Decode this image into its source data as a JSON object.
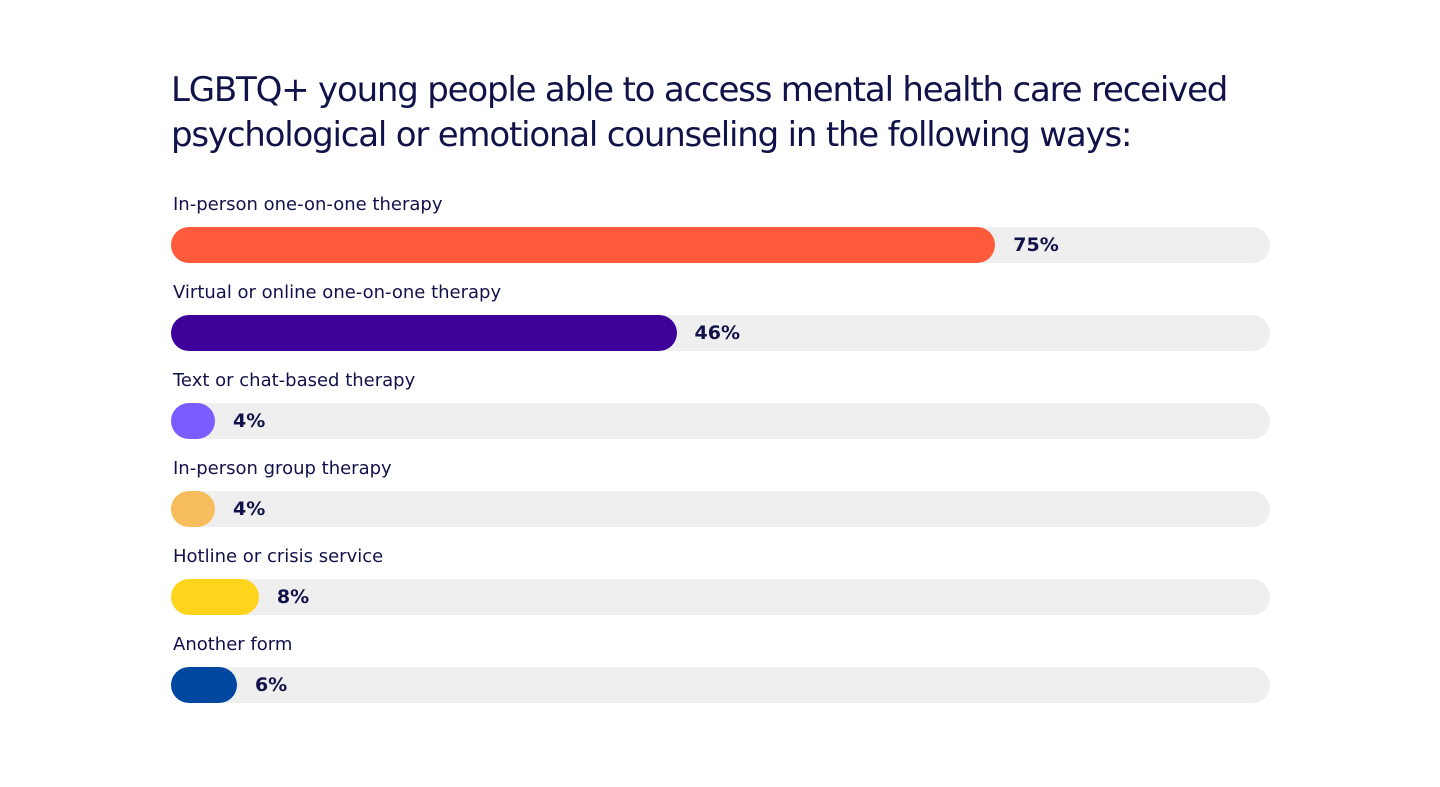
{
  "chart_data": {
    "type": "bar",
    "orientation": "horizontal",
    "title": "LGBTQ+ young people able to access mental health care received psychological or emotional counseling in the following ways:",
    "categories": [
      "In-person one-on-one therapy",
      "Virtual or online one-on-one therapy",
      "Text or chat-based therapy",
      "In-person group therapy",
      "Hotline or crisis service",
      "Another form"
    ],
    "values": [
      75,
      46,
      4,
      4,
      8,
      6
    ],
    "value_labels": [
      "75%",
      "46%",
      "4%",
      "4%",
      "8%",
      "6%"
    ],
    "colors": [
      "#ff5a3c",
      "#3d0099",
      "#7b5cff",
      "#f7bd5c",
      "#ffd41c",
      "#0047a0"
    ],
    "track_color": "#efefef",
    "xlim": [
      0,
      100
    ],
    "unit": "%",
    "grid": false,
    "legend": "none"
  }
}
